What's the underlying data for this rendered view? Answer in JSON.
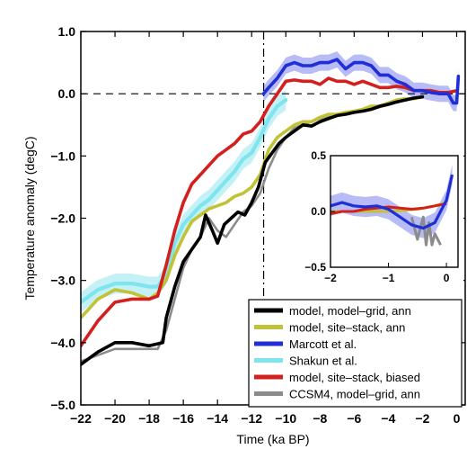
{
  "chart_data": [
    {
      "type": "line",
      "xlabel": "Time (ka BP)",
      "ylabel": "Temperature anomaly (degC)",
      "xlim": [
        -22,
        0.5
      ],
      "ylim": [
        -5.0,
        1.0
      ],
      "xticks": [
        -22,
        -20,
        -18,
        -16,
        -14,
        -12,
        -10,
        -8,
        -6,
        -4,
        -2,
        0
      ],
      "yticks": [
        -5.0,
        -4.0,
        -3.0,
        -2.0,
        -1.0,
        0.0,
        1.0
      ],
      "xtick_labels": [
        "−22",
        "−20",
        "−18",
        "−16",
        "−14",
        "−12",
        "−10",
        "−8",
        "−6",
        "−4",
        "−2",
        "0"
      ],
      "ytick_labels": [
        "−5.0",
        "−4.0",
        "−3.0",
        "−2.0",
        "−1.0",
        "0.0",
        "1.0"
      ],
      "vline_x": -11.3,
      "hline_y": 0.0,
      "legend_position": "bottom-right",
      "series": [
        {
          "name": "model, model–grid, ann",
          "color": "#000000",
          "x": [
            -22,
            -21,
            -20,
            -19,
            -18,
            -17.2,
            -17,
            -16.5,
            -16,
            -15.5,
            -15,
            -14.7,
            -14.3,
            -14,
            -13.6,
            -13.2,
            -12.8,
            -12.4,
            -12,
            -11.6,
            -11.2,
            -10.8,
            -10.4,
            -10,
            -9.5,
            -9,
            -8.5,
            -8,
            -7.5,
            -7,
            -6.5,
            -6,
            -5.5,
            -5,
            -4.5,
            -4,
            -3.5,
            -3,
            -2.5,
            -2
          ],
          "y": [
            -4.35,
            -4.15,
            -4.0,
            -4.0,
            -4.05,
            -4.0,
            -3.6,
            -3.1,
            -2.7,
            -2.5,
            -2.3,
            -1.95,
            -2.2,
            -2.4,
            -2.1,
            -2.0,
            -1.9,
            -1.95,
            -1.75,
            -1.5,
            -1.1,
            -0.95,
            -0.8,
            -0.7,
            -0.6,
            -0.5,
            -0.52,
            -0.45,
            -0.4,
            -0.35,
            -0.33,
            -0.3,
            -0.28,
            -0.25,
            -0.2,
            -0.17,
            -0.13,
            -0.1,
            -0.07,
            -0.05
          ]
        },
        {
          "name": "model, site–stack, ann",
          "color": "#c2c237",
          "x": [
            -22,
            -21,
            -20,
            -19,
            -18,
            -17.5,
            -17,
            -16.5,
            -16,
            -15.5,
            -15,
            -14.5,
            -14,
            -13.5,
            -13,
            -12.5,
            -12,
            -11.5,
            -11,
            -10.5,
            -10,
            -9.5,
            -9,
            -8.5,
            -8,
            -7.5,
            -7,
            -6.5,
            -6,
            -5.5,
            -5,
            -4.5,
            -4,
            -3.5,
            -3,
            -2.5,
            -2
          ],
          "y": [
            -3.6,
            -3.3,
            -3.15,
            -3.2,
            -3.3,
            -3.2,
            -3.0,
            -2.6,
            -2.3,
            -2.05,
            -1.95,
            -1.85,
            -1.8,
            -1.75,
            -1.65,
            -1.6,
            -1.5,
            -1.3,
            -0.9,
            -0.7,
            -0.6,
            -0.5,
            -0.45,
            -0.45,
            -0.38,
            -0.33,
            -0.33,
            -0.3,
            -0.28,
            -0.25,
            -0.2,
            -0.2,
            -0.15,
            -0.1,
            -0.08,
            -0.08,
            -0.05
          ]
        },
        {
          "name": "Marcott et al.",
          "color": "#1f2ed6",
          "x": [
            -11.3,
            -11,
            -10.5,
            -10,
            -9.5,
            -9,
            -8.5,
            -8,
            -7.5,
            -7,
            -6.5,
            -6,
            -5.5,
            -5,
            -4.5,
            -4,
            -3.5,
            -3,
            -2.5,
            -2,
            -1.5,
            -1,
            -0.5,
            -0.2,
            0,
            0.1
          ],
          "y": [
            0.0,
            0.1,
            0.25,
            0.45,
            0.5,
            0.45,
            0.45,
            0.5,
            0.5,
            0.55,
            0.4,
            0.5,
            0.5,
            0.45,
            0.3,
            0.3,
            0.2,
            0.15,
            0.05,
            0.05,
            0.02,
            0.0,
            0.0,
            -0.15,
            -0.15,
            0.28
          ]
        },
        {
          "name": "Shakun et al.",
          "color": "#7ee4ee",
          "x": [
            -22,
            -21,
            -20,
            -19,
            -18,
            -17.5,
            -17,
            -16.5,
            -16,
            -15.5,
            -15,
            -14.5,
            -14,
            -13.5,
            -13,
            -12.5,
            -12,
            -11.5,
            -11,
            -10.5,
            -10
          ],
          "y": [
            -3.35,
            -3.15,
            -3.05,
            -3.05,
            -3.1,
            -3.1,
            -2.9,
            -2.4,
            -2.1,
            -1.95,
            -1.8,
            -1.7,
            -1.55,
            -1.4,
            -1.25,
            -1.05,
            -0.95,
            -0.7,
            -0.4,
            -0.2,
            -0.1
          ]
        },
        {
          "name": "model, site–stack, biased",
          "color": "#d41f1f",
          "x": [
            -22,
            -21,
            -20,
            -19,
            -18,
            -17.5,
            -17,
            -16.5,
            -16,
            -15.5,
            -15,
            -14.5,
            -14,
            -13.5,
            -13,
            -12.5,
            -12,
            -11.5,
            -11,
            -10.5,
            -10,
            -9.5,
            -9,
            -8.5,
            -8,
            -7.5,
            -7,
            -6.5,
            -6,
            -5.5,
            -5,
            -4.5,
            -4,
            -3.5,
            -3,
            -2.5,
            -2,
            -1.5,
            -1,
            -0.5,
            0
          ],
          "y": [
            -4.05,
            -3.65,
            -3.35,
            -3.3,
            -3.3,
            -3.25,
            -2.75,
            -2.2,
            -1.75,
            -1.45,
            -1.3,
            -1.15,
            -1.0,
            -0.9,
            -0.8,
            -0.65,
            -0.6,
            -0.45,
            -0.2,
            0.0,
            0.2,
            0.22,
            0.2,
            0.2,
            0.15,
            0.25,
            0.2,
            0.2,
            0.15,
            0.2,
            0.15,
            0.1,
            0.1,
            0.12,
            0.1,
            0.05,
            0.05,
            0.05,
            0.02,
            0.02,
            0.05
          ]
        },
        {
          "name": "CCSM4, model–grid, ann",
          "color": "#8c8c8c",
          "x": [
            -22,
            -21,
            -20,
            -19,
            -18,
            -17.5,
            -17,
            -16.5,
            -16,
            -15.5,
            -15,
            -14.5,
            -14,
            -13.5,
            -13,
            -12.5,
            -12,
            -11.5,
            -11,
            -10.5,
            -10,
            -9.5,
            -9,
            -8.5,
            -8,
            -7,
            -6,
            -5,
            -4,
            -3,
            -2
          ],
          "y": [
            -4.3,
            -4.2,
            -4.1,
            -4.1,
            -4.1,
            -4.1,
            -3.8,
            -3.3,
            -2.8,
            -2.5,
            -2.3,
            -2.0,
            -2.2,
            -2.3,
            -2.1,
            -1.9,
            -1.8,
            -1.6,
            -1.2,
            -0.9,
            -0.7,
            -0.55,
            -0.5,
            -0.45,
            -0.4,
            -0.35,
            -0.3,
            -0.25,
            -0.18,
            -0.1,
            -0.05
          ]
        }
      ]
    },
    {
      "type": "line",
      "xlim": [
        -2,
        0.2
      ],
      "ylim": [
        -0.5,
        0.5
      ],
      "xticks": [
        -2,
        -1,
        0
      ],
      "yticks": [
        -0.5,
        0.0,
        0.5
      ],
      "xtick_labels": [
        "−2",
        "−1",
        "0"
      ],
      "ytick_labels": [
        "−0.5",
        "0.0",
        "0.5"
      ],
      "series": [
        {
          "name": "Marcott et al.",
          "color": "#1f2ed6",
          "x": [
            -2,
            -1.8,
            -1.6,
            -1.4,
            -1.2,
            -1.0,
            -0.8,
            -0.6,
            -0.4,
            -0.2,
            -0.1,
            0,
            0.1
          ],
          "y": [
            0.05,
            0.08,
            0.05,
            0.04,
            0.05,
            0.02,
            -0.05,
            -0.12,
            -0.15,
            -0.1,
            0.0,
            0.1,
            0.33
          ]
        },
        {
          "name": "model, site–stack, biased",
          "color": "#d41f1f",
          "x": [
            -2,
            -1.8,
            -1.6,
            -1.4,
            -1.2,
            -1.0,
            -0.8,
            -0.6,
            -0.4,
            -0.2,
            0
          ],
          "y": [
            -0.02,
            0.0,
            0.0,
            0.02,
            0.03,
            0.04,
            0.03,
            0.02,
            0.03,
            0.05,
            0.07
          ]
        },
        {
          "name": "CCSM4, model–grid, ann",
          "color": "#8c8c8c",
          "x": [
            -0.6,
            -0.5,
            -0.4,
            -0.35,
            -0.3,
            -0.25,
            -0.2,
            -0.15,
            -0.1
          ],
          "y": [
            -0.05,
            -0.25,
            -0.05,
            -0.3,
            -0.1,
            -0.3,
            -0.2,
            -0.25,
            -0.3
          ]
        },
        {
          "name": "model, site–stack, ann",
          "color": "#c2c237",
          "x": [
            -2,
            -1.5,
            -1.0,
            -0.5,
            -0.2,
            0
          ],
          "y": [
            0.0,
            0.0,
            0.0,
            0.02,
            0.05,
            0.08
          ]
        }
      ]
    }
  ]
}
